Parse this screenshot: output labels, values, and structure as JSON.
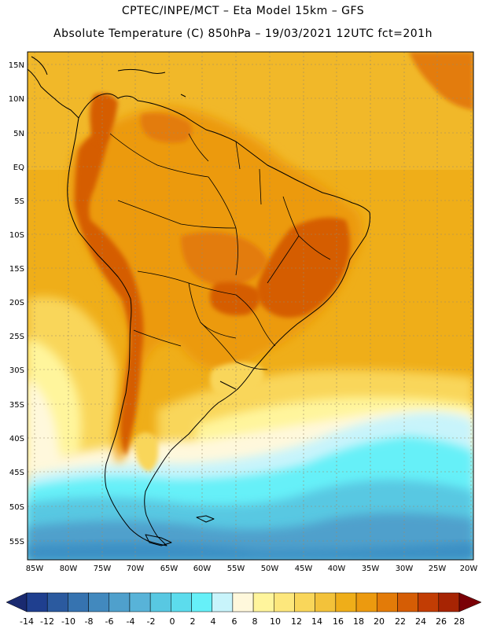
{
  "header": {
    "line1": "CPTEC/INPE/MCT –  Eta Model 15km – GFS",
    "line2": "Absolute Temperature (C) 850hPa – 19/03/2021 12UTC fct=201h"
  },
  "axes": {
    "lat_labels": [
      "15N",
      "10N",
      "5N",
      "EQ",
      "5S",
      "10S",
      "15S",
      "20S",
      "25S",
      "30S",
      "35S",
      "40S",
      "45S",
      "50S",
      "55S"
    ],
    "lon_labels": [
      "85W",
      "80W",
      "75W",
      "70W",
      "65W",
      "60W",
      "55W",
      "50W",
      "45W",
      "40W",
      "35W",
      "30W",
      "25W",
      "20W"
    ]
  },
  "colorbar": {
    "labels": [
      "-14",
      "-12",
      "-10",
      "-8",
      "-6",
      "-4",
      "-2",
      "0",
      "2",
      "4",
      "6",
      "8",
      "10",
      "12",
      "14",
      "16",
      "18",
      "20",
      "22",
      "24",
      "26",
      "28"
    ],
    "colors": [
      "#1f3f8f",
      "#2b5a9f",
      "#3673b0",
      "#4289be",
      "#4fa0cc",
      "#58b3d8",
      "#58c8e2",
      "#5cdced",
      "#66f0f8",
      "#c8f4fb",
      "#fff8dc",
      "#fff59c",
      "#fde77c",
      "#f9d65a",
      "#f3c23a",
      "#efae19",
      "#ec9a0f",
      "#e37b08",
      "#d55d05",
      "#c23d04",
      "#a72403",
      "#8c1305"
    ],
    "arrow_left": "#1a2a70",
    "arrow_right": "#7a0006"
  },
  "map_colors": {
    "ocean_south_deep": "#3b8fc4",
    "ocean_cold": "#58c8e2",
    "ocean_cyan": "#66f0f8",
    "ocean_pale": "#c8f4fb",
    "warm_light": "#fff8dc",
    "yellow": "#f9d65a",
    "orange_main": "#efae19",
    "orange_mid": "#ec9a0f",
    "orange_dark": "#e37b08",
    "red_orange": "#d55d05",
    "border": "#000000"
  }
}
